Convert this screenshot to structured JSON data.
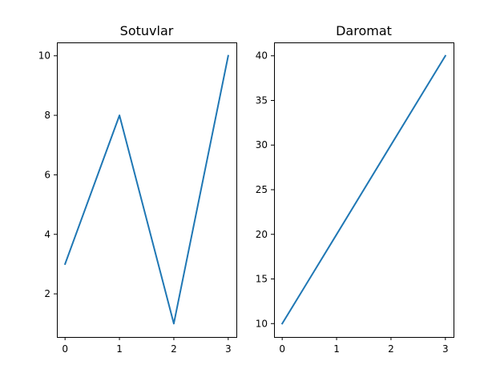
{
  "chart_data": [
    {
      "type": "line",
      "title": "Sotuvlar",
      "xlabel": "",
      "ylabel": "",
      "x": [
        0,
        1,
        2,
        3
      ],
      "series": [
        {
          "values": [
            3,
            8,
            1,
            10
          ],
          "color": "#1f77b4"
        }
      ],
      "xlim": [
        -0.15,
        3.15
      ],
      "ylim": [
        0.55,
        10.45
      ],
      "xticks": [
        0,
        1,
        2,
        3
      ],
      "yticks": [
        2,
        4,
        6,
        8,
        10
      ],
      "grid": false
    },
    {
      "type": "line",
      "title": "Daromat",
      "xlabel": "",
      "ylabel": "",
      "x": [
        0,
        1,
        2,
        3
      ],
      "series": [
        {
          "values": [
            10,
            20,
            30,
            40
          ],
          "color": "#1f77b4"
        }
      ],
      "xlim": [
        -0.15,
        3.15
      ],
      "ylim": [
        8.5,
        41.5
      ],
      "xticks": [
        0,
        1,
        2,
        3
      ],
      "yticks": [
        10,
        15,
        20,
        25,
        30,
        35,
        40
      ],
      "grid": false
    }
  ]
}
